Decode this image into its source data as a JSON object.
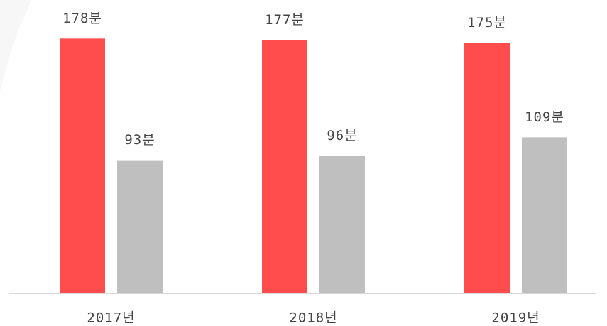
{
  "chart_data": {
    "type": "bar",
    "categories": [
      "2017년",
      "2018년",
      "2019년"
    ],
    "series": [
      {
        "color": "#ff4d4d",
        "values": [
          178,
          177,
          175
        ],
        "value_labels": [
          "178분",
          "177분",
          "175분"
        ]
      },
      {
        "color": "#bfbfbf",
        "values": [
          93,
          96,
          109
        ],
        "value_labels": [
          "93분",
          "96분",
          "109분"
        ]
      }
    ],
    "ylim": [
      0,
      200
    ]
  }
}
